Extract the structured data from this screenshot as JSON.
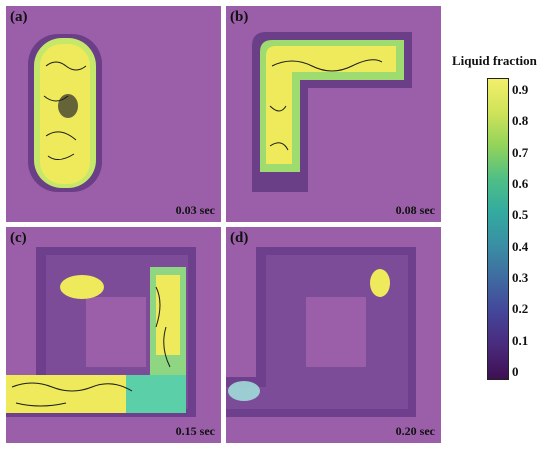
{
  "panels": [
    {
      "label": "(a)",
      "time": "0.03 sec"
    },
    {
      "label": "(b)",
      "time": "0.08 sec"
    },
    {
      "label": "(c)",
      "time": "0.15 sec"
    },
    {
      "label": "(d)",
      "time": "0.20 sec"
    }
  ],
  "colorbar": {
    "title": "Liquid fraction",
    "ticks": [
      "0.9",
      "0.8",
      "0.7",
      "0.6",
      "0.5",
      "0.4",
      "0.3",
      "0.2",
      "0.1",
      "0"
    ],
    "colors": [
      "#f3ef6a",
      "#cfe35a",
      "#92d35a",
      "#4fbf86",
      "#33aaa0",
      "#3a8ea4",
      "#3f6aa0",
      "#44459a",
      "#4a2a7c",
      "#3e0f52"
    ]
  },
  "colors": {
    "background": "#9a5fa8",
    "track": "#6e3f8c",
    "track_shadow": "#4f2a6a",
    "liquid_high": "#eeea5c",
    "liquid_mid": "#5bd0a8",
    "flow_lines": "#1a1a1a"
  }
}
